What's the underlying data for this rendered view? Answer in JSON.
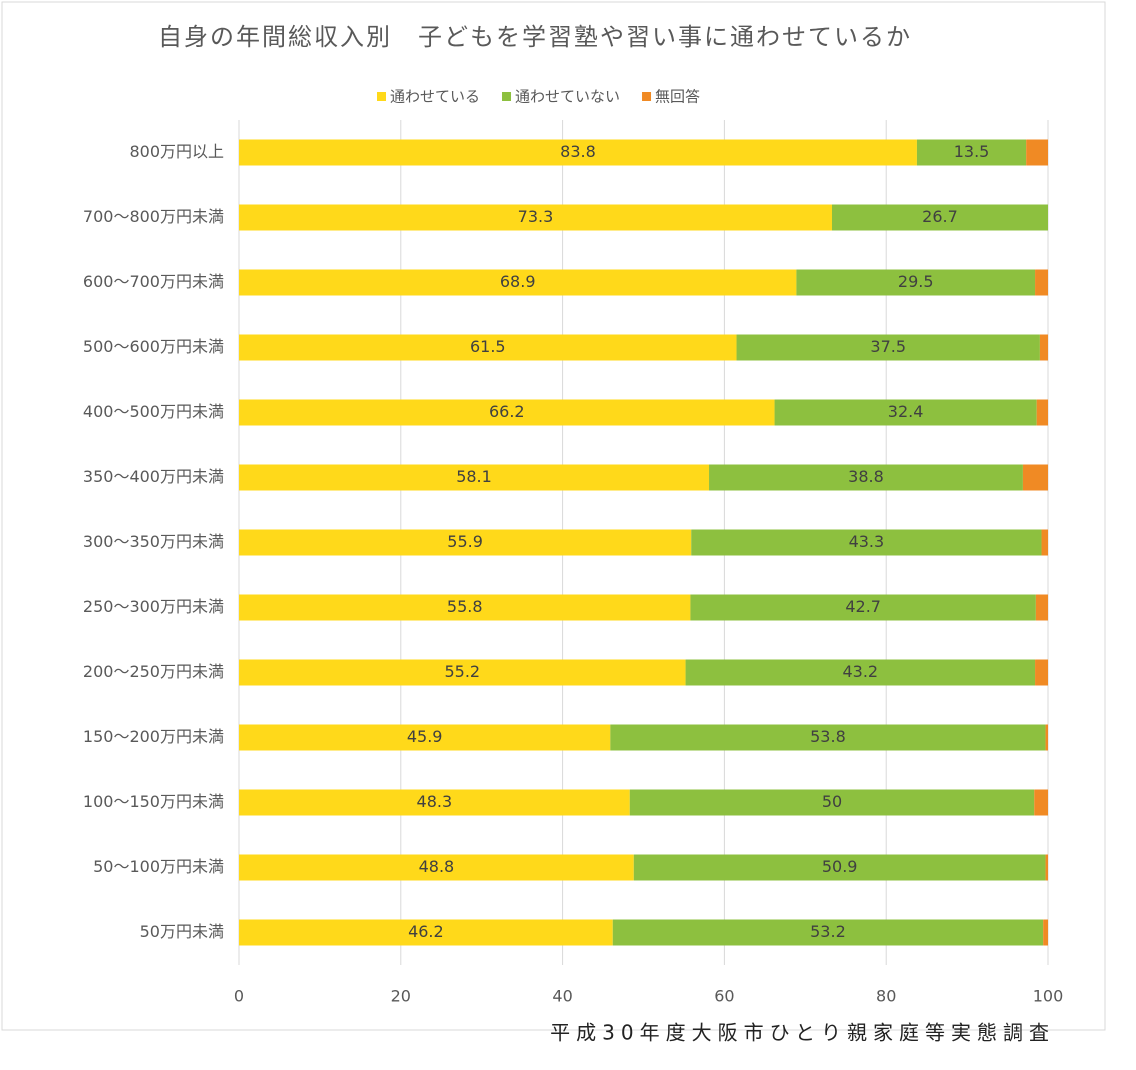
{
  "chart_data": {
    "type": "stacked-bar-horizontal",
    "title": "自身の年間総収入別　子どもを学習塾や習い事に通わせているか",
    "source": "平成30年度大阪市ひとり親家庭等実態調査",
    "categories": [
      "800万円以上",
      "700～800万円未満",
      "600～700万円未満",
      "500～600万円未満",
      "400～500万円未満",
      "350～400万円未満",
      "300～350万円未満",
      "250～300万円未満",
      "200～250万円未満",
      "150～200万円未満",
      "100～150万円未満",
      "50～100万円未満",
      "50万円未満"
    ],
    "series": [
      {
        "name": "通わせている",
        "color": "#FFD91A",
        "data_labels": true,
        "values": [
          83.8,
          73.3,
          68.9,
          61.5,
          66.2,
          58.1,
          55.9,
          55.8,
          55.2,
          45.9,
          48.3,
          48.8,
          46.2
        ]
      },
      {
        "name": "通わせていない",
        "color": "#8DC03F",
        "data_labels": true,
        "values": [
          13.5,
          26.7,
          29.5,
          37.5,
          32.4,
          38.8,
          43.3,
          42.7,
          43.2,
          53.8,
          50,
          50.9,
          53.2
        ]
      },
      {
        "name": "無回答",
        "color": "#F08A24",
        "data_labels": false,
        "values": [
          2.7,
          0,
          1.6,
          1.0,
          1.4,
          3.1,
          0.8,
          1.5,
          1.6,
          0.3,
          1.7,
          0.3,
          0.6
        ]
      }
    ],
    "xlim": [
      0,
      100
    ],
    "xticks": [
      0,
      20,
      40,
      60,
      80,
      100
    ],
    "grid": true,
    "legend": "top"
  }
}
